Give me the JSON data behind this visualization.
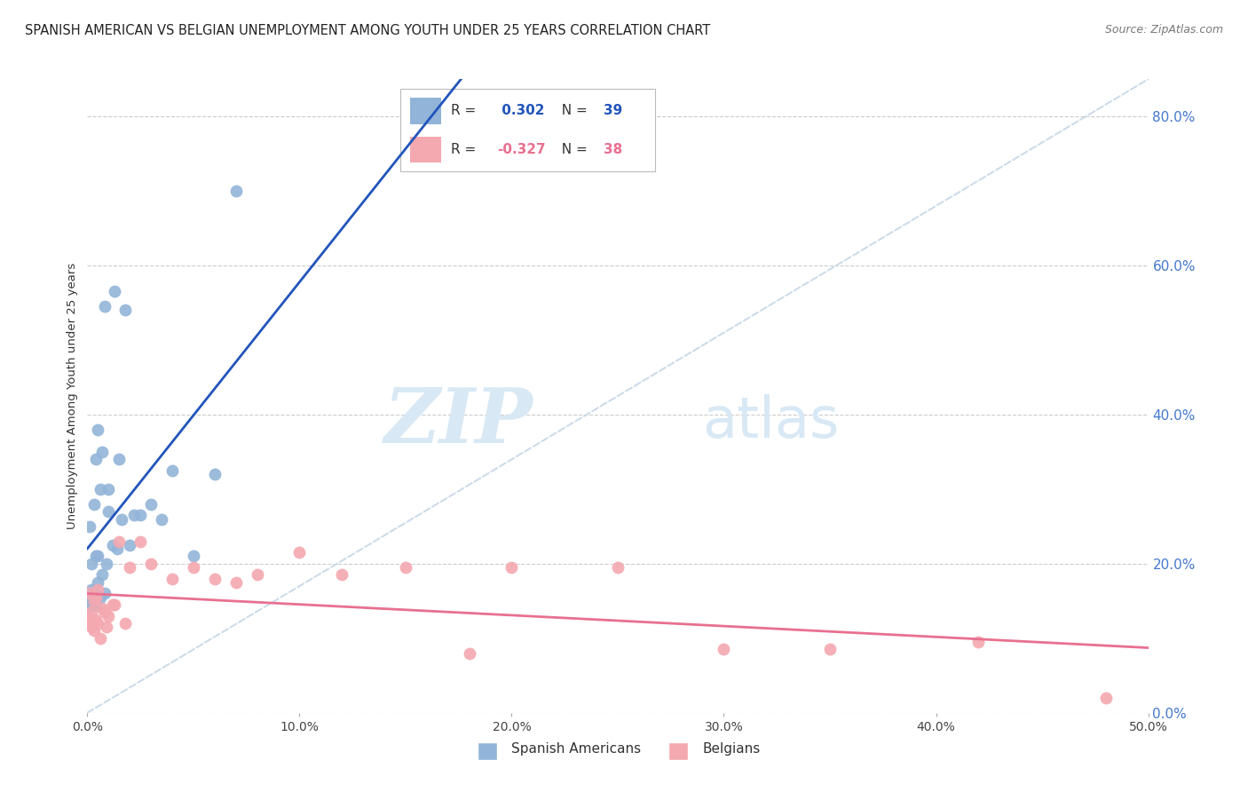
{
  "title": "SPANISH AMERICAN VS BELGIAN UNEMPLOYMENT AMONG YOUTH UNDER 25 YEARS CORRELATION CHART",
  "source": "Source: ZipAtlas.com",
  "ylabel": "Unemployment Among Youth under 25 years",
  "xlim": [
    0.0,
    0.5
  ],
  "ylim": [
    0.0,
    0.85
  ],
  "yticks": [
    0.0,
    0.2,
    0.4,
    0.6,
    0.8
  ],
  "xticks": [
    0.0,
    0.1,
    0.2,
    0.3,
    0.4,
    0.5
  ],
  "xtick_labels": [
    "0.0%",
    "10.0%",
    "20.0%",
    "30.0%",
    "40.0%",
    "50.0%"
  ],
  "ytick_labels_right": [
    "0.0%",
    "20.0%",
    "40.0%",
    "60.0%",
    "80.0%"
  ],
  "R_blue": 0.302,
  "N_blue": 39,
  "R_pink": -0.327,
  "N_pink": 38,
  "blue_color": "#92B4D8",
  "pink_color": "#F4A8B0",
  "blue_line_color": "#2255BB",
  "pink_line_color": "#E87090",
  "diagonal_color": "#C8D8E8",
  "watermark_zip": "ZIP",
  "watermark_atlas": "atlas",
  "watermark_color": "#D8E8F4",
  "title_fontsize": 10.5,
  "axis_label_fontsize": 9.5,
  "tick_fontsize": 10,
  "right_tick_color": "#4477CC",
  "spanish_x": [
    0.0,
    0.001,
    0.001,
    0.002,
    0.002,
    0.002,
    0.003,
    0.003,
    0.003,
    0.004,
    0.004,
    0.004,
    0.005,
    0.005,
    0.005,
    0.006,
    0.006,
    0.007,
    0.007,
    0.008,
    0.008,
    0.009,
    0.01,
    0.01,
    0.012,
    0.013,
    0.014,
    0.015,
    0.016,
    0.018,
    0.02,
    0.022,
    0.025,
    0.03,
    0.035,
    0.04,
    0.05,
    0.06,
    0.07
  ],
  "spanish_y": [
    0.155,
    0.145,
    0.25,
    0.15,
    0.165,
    0.2,
    0.145,
    0.16,
    0.28,
    0.145,
    0.21,
    0.34,
    0.175,
    0.21,
    0.38,
    0.155,
    0.3,
    0.185,
    0.35,
    0.16,
    0.545,
    0.2,
    0.27,
    0.3,
    0.225,
    0.565,
    0.22,
    0.34,
    0.26,
    0.54,
    0.225,
    0.265,
    0.265,
    0.28,
    0.26,
    0.325,
    0.21,
    0.32,
    0.7
  ],
  "belgian_x": [
    0.0,
    0.001,
    0.001,
    0.002,
    0.002,
    0.003,
    0.003,
    0.004,
    0.004,
    0.005,
    0.005,
    0.006,
    0.007,
    0.008,
    0.009,
    0.01,
    0.012,
    0.013,
    0.015,
    0.018,
    0.02,
    0.025,
    0.03,
    0.04,
    0.05,
    0.06,
    0.07,
    0.08,
    0.1,
    0.12,
    0.15,
    0.18,
    0.2,
    0.25,
    0.3,
    0.35,
    0.42,
    0.48
  ],
  "belgian_y": [
    0.13,
    0.12,
    0.16,
    0.115,
    0.135,
    0.11,
    0.15,
    0.125,
    0.155,
    0.12,
    0.165,
    0.1,
    0.14,
    0.135,
    0.115,
    0.13,
    0.145,
    0.145,
    0.23,
    0.12,
    0.195,
    0.23,
    0.2,
    0.18,
    0.195,
    0.18,
    0.175,
    0.185,
    0.215,
    0.185,
    0.195,
    0.08,
    0.195,
    0.195,
    0.085,
    0.085,
    0.095,
    0.02
  ]
}
